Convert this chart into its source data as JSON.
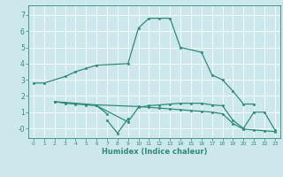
{
  "xlabel": "Humidex (Indice chaleur)",
  "color": "#2e8b7a",
  "bg_color": "#cde8ec",
  "grid_color": "#ffffff",
  "ylim": [
    -0.6,
    7.6
  ],
  "xlim": [
    -0.5,
    23.5
  ],
  "yticks": [
    0,
    1,
    2,
    3,
    4,
    5,
    6,
    7
  ],
  "ytick_labels": [
    "-0",
    "1",
    "2",
    "3",
    "4",
    "5",
    "6",
    "7"
  ],
  "xticks": [
    0,
    1,
    2,
    3,
    4,
    5,
    6,
    7,
    8,
    9,
    10,
    11,
    12,
    13,
    14,
    15,
    16,
    17,
    18,
    19,
    20,
    21,
    22,
    23
  ],
  "series1_x": [
    0,
    1,
    3,
    4,
    5,
    6,
    9,
    10,
    11,
    12,
    13,
    14,
    16,
    17,
    18,
    19,
    20,
    21
  ],
  "series1_y": [
    2.8,
    2.8,
    3.2,
    3.5,
    3.7,
    3.9,
    4.0,
    6.2,
    6.8,
    6.8,
    6.8,
    5.0,
    4.7,
    3.3,
    3.0,
    2.3,
    1.5,
    1.5
  ],
  "series2_x": [
    2,
    3,
    4,
    5,
    6,
    7
  ],
  "series2_y": [
    1.65,
    1.55,
    1.5,
    1.45,
    1.4,
    0.9
  ],
  "series3_x": [
    7,
    8,
    9
  ],
  "series3_y": [
    0.5,
    -0.3,
    0.6
  ],
  "series4_x": [
    6,
    9,
    10,
    11,
    12,
    13,
    14,
    15,
    16,
    17,
    18,
    19,
    20,
    21,
    22,
    23
  ],
  "series4_y": [
    1.4,
    0.4,
    1.3,
    1.4,
    1.45,
    1.5,
    1.55,
    1.55,
    1.55,
    1.45,
    1.4,
    0.5,
    0.0,
    1.0,
    1.0,
    -0.1
  ],
  "series5_x": [
    2,
    3,
    4,
    5,
    6,
    10,
    11,
    12,
    13,
    14,
    15,
    16,
    17,
    18,
    19,
    20,
    21,
    22,
    23
  ],
  "series5_y": [
    1.65,
    1.6,
    1.55,
    1.5,
    1.45,
    1.35,
    1.3,
    1.25,
    1.2,
    1.15,
    1.1,
    1.05,
    1.0,
    0.9,
    0.3,
    -0.05,
    -0.1,
    -0.15,
    -0.2
  ]
}
